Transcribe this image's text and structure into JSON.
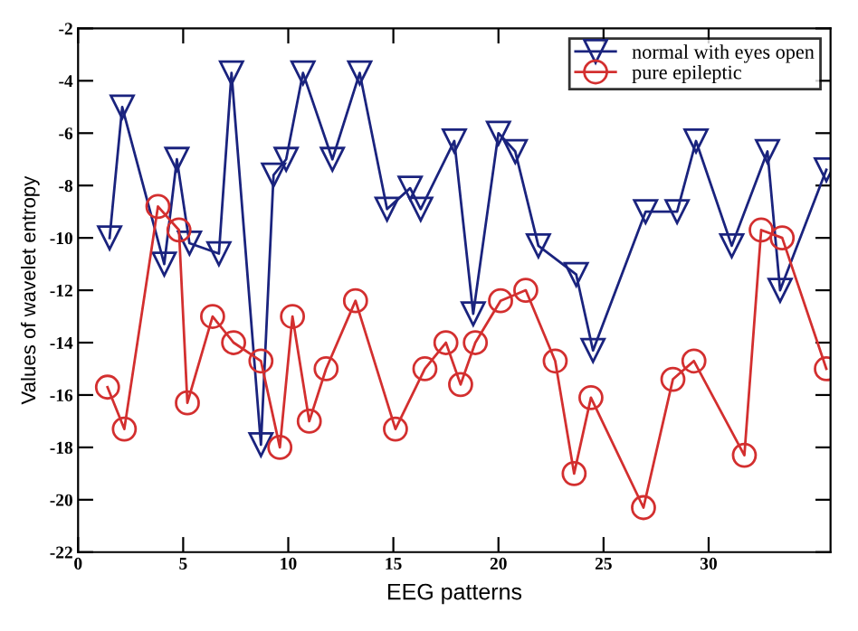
{
  "chart_data": {
    "type": "line",
    "xlabel": "EEG patterns",
    "ylabel": "Values of wavelet entropy",
    "xlim": [
      0,
      35.8
    ],
    "xticks": [
      0,
      5,
      10,
      15,
      20,
      25,
      30
    ],
    "ylim": [
      -22,
      -2
    ],
    "yticks": [
      -22,
      -20,
      -18,
      -16,
      -14,
      -12,
      -10,
      -8,
      -6,
      -4,
      -2
    ],
    "grid": false,
    "legend": "top right",
    "line_style": "solid",
    "series": [
      {
        "name": "normal with eyes open",
        "color": "#1a237e",
        "marker": "triangle_down",
        "x": [
          1.5,
          2.1,
          4.1,
          4.7,
          5.3,
          6.7,
          7.3,
          8.7,
          9.3,
          9.9,
          10.7,
          12.1,
          13.4,
          14.7,
          15.8,
          16.3,
          17.9,
          18.8,
          20.0,
          20.8,
          21.9,
          23.7,
          24.5,
          27.0,
          28.5,
          29.4,
          31.1,
          32.8,
          33.4,
          35.6
        ],
        "values": [
          -10,
          -5,
          -11,
          -7,
          -10.2,
          -10.6,
          -3.7,
          -17.9,
          -7.6,
          -7,
          -3.7,
          -7,
          -3.7,
          -8.9,
          -8.1,
          -8.9,
          -6.3,
          -12.9,
          -6.0,
          -6.7,
          -10.3,
          -11.4,
          -14.3,
          -9.0,
          -9.0,
          -6.3,
          -10.3,
          -6.7,
          -12.0,
          -7.4
        ]
      },
      {
        "name": "pure epileptic",
        "color": "#d32f2f",
        "marker": "circle",
        "x": [
          1.4,
          2.2,
          3.8,
          4.8,
          5.2,
          6.4,
          7.4,
          8.7,
          9.6,
          10.2,
          11.0,
          11.8,
          13.2,
          15.1,
          16.5,
          17.5,
          18.2,
          18.9,
          20.1,
          21.3,
          22.7,
          23.6,
          24.4,
          26.9,
          28.3,
          29.3,
          31.7,
          32.5,
          33.5,
          35.6
        ],
        "values": [
          -15.7,
          -17.3,
          -8.8,
          -9.7,
          -16.3,
          -13.0,
          -14.0,
          -14.7,
          -18.0,
          -13.0,
          -17.0,
          -15.0,
          -12.4,
          -17.3,
          -15.0,
          -14.0,
          -15.6,
          -14.0,
          -12.4,
          -12.0,
          -14.7,
          -19.0,
          -16.1,
          -20.3,
          -15.4,
          -14.7,
          -18.3,
          -9.7,
          -10.0,
          -15.0
        ]
      }
    ]
  }
}
